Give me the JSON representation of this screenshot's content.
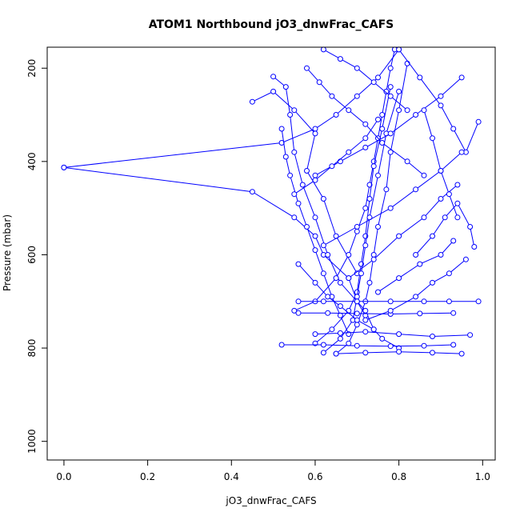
{
  "chart_data": {
    "type": "line",
    "title": "ATOM1 Northbound jO3_dnwFrac_CAFS",
    "xlabel": "jO3_dnwFrac_CAFS",
    "ylabel": "Pressure (mbar)",
    "xlim": [
      -0.04,
      1.03
    ],
    "ylim": [
      1040,
      155
    ],
    "y_reversed": true,
    "x_ticks": [
      0.0,
      0.2,
      0.4,
      0.6,
      0.8,
      1.0
    ],
    "x_tick_labels": [
      "0.0",
      "0.2",
      "0.4",
      "0.6",
      "0.8",
      "1.0"
    ],
    "y_ticks": [
      200,
      400,
      600,
      800,
      1000
    ],
    "y_tick_labels": [
      "200",
      "400",
      "600",
      "800",
      "1000"
    ],
    "grid": false,
    "legend": "none",
    "series_color": "#0000ff",
    "marker": "open-circle",
    "series": [
      {
        "x": [
          0.0,
          0.45,
          0.55,
          0.6,
          0.62,
          0.68,
          0.7,
          0.72,
          0.74,
          0.76,
          0.8
        ],
        "y": [
          413,
          465,
          520,
          560,
          600,
          650,
          700,
          720,
          760,
          780,
          800
        ]
      },
      {
        "x": [
          0.0,
          0.52,
          0.6,
          0.65,
          0.7,
          0.75,
          0.8
        ],
        "y": [
          413,
          360,
          330,
          300,
          260,
          220,
          160
        ]
      },
      {
        "x": [
          0.45,
          0.5,
          0.55,
          0.6,
          0.58,
          0.62,
          0.65,
          0.7
        ],
        "y": [
          272,
          250,
          290,
          340,
          420,
          480,
          560,
          640
        ]
      },
      {
        "x": [
          0.5,
          0.53,
          0.54,
          0.55,
          0.57,
          0.6,
          0.63,
          0.66,
          0.7,
          0.72
        ],
        "y": [
          218,
          240,
          300,
          380,
          450,
          520,
          600,
          660,
          700,
          730
        ]
      },
      {
        "x": [
          0.52,
          0.53,
          0.54,
          0.56,
          0.58,
          0.6,
          0.62,
          0.64,
          0.66,
          0.68
        ],
        "y": [
          330,
          390,
          430,
          490,
          540,
          590,
          640,
          690,
          730,
          770
        ]
      },
      {
        "x": [
          0.55,
          0.6,
          0.65,
          0.68,
          0.7,
          0.72,
          0.73,
          0.74,
          0.75,
          0.76,
          0.77,
          0.78,
          0.79
        ],
        "y": [
          720,
          700,
          650,
          600,
          550,
          500,
          450,
          400,
          350,
          300,
          250,
          200,
          160
        ]
      },
      {
        "x": [
          0.6,
          0.64,
          0.68,
          0.7,
          0.71,
          0.72,
          0.73,
          0.74,
          0.76,
          0.78
        ],
        "y": [
          790,
          760,
          720,
          680,
          620,
          560,
          480,
          410,
          330,
          240
        ]
      },
      {
        "x": [
          0.62,
          0.66,
          0.69,
          0.7,
          0.71,
          0.72,
          0.73,
          0.75,
          0.77,
          0.8
        ],
        "y": [
          810,
          780,
          740,
          690,
          640,
          580,
          520,
          430,
          340,
          250
        ]
      },
      {
        "x": [
          0.65,
          0.68,
          0.7,
          0.72,
          0.73,
          0.74,
          0.75,
          0.77,
          0.78,
          0.8,
          0.82
        ],
        "y": [
          812,
          790,
          750,
          700,
          660,
          600,
          540,
          460,
          380,
          290,
          190
        ]
      },
      {
        "x": [
          0.52,
          0.62,
          0.7,
          0.78,
          0.86,
          0.93
        ],
        "y": [
          793,
          793,
          795,
          796,
          795,
          793
        ]
      },
      {
        "x": [
          0.65,
          0.72,
          0.8,
          0.88,
          0.95
        ],
        "y": [
          812,
          810,
          808,
          810,
          812
        ]
      },
      {
        "x": [
          0.56,
          0.62,
          0.7,
          0.78,
          0.86,
          0.92,
          0.99
        ],
        "y": [
          700,
          700,
          700,
          700,
          700,
          700,
          700
        ]
      },
      {
        "x": [
          0.56,
          0.63,
          0.7,
          0.78,
          0.85,
          0.93
        ],
        "y": [
          725,
          725,
          726,
          727,
          726,
          725
        ]
      },
      {
        "x": [
          0.6,
          0.66,
          0.72,
          0.8,
          0.88,
          0.97
        ],
        "y": [
          770,
          768,
          765,
          770,
          775,
          772
        ]
      },
      {
        "x": [
          0.8,
          0.85,
          0.9,
          0.93,
          0.96,
          0.99
        ],
        "y": [
          160,
          220,
          280,
          330,
          380,
          315
        ]
      },
      {
        "x": [
          0.84,
          0.88,
          0.91,
          0.94,
          0.97,
          0.98
        ],
        "y": [
          600,
          560,
          520,
          490,
          540,
          583
        ]
      },
      {
        "x": [
          0.62,
          0.7,
          0.78,
          0.84,
          0.9,
          0.95
        ],
        "y": [
          580,
          540,
          500,
          460,
          420,
          380
        ]
      },
      {
        "x": [
          0.68,
          0.74,
          0.8,
          0.86,
          0.9,
          0.94
        ],
        "y": [
          650,
          610,
          560,
          520,
          480,
          450
        ]
      },
      {
        "x": [
          0.6,
          0.66,
          0.72,
          0.78,
          0.84,
          0.9,
          0.95
        ],
        "y": [
          430,
          400,
          370,
          340,
          300,
          260,
          220
        ]
      },
      {
        "x": [
          0.55,
          0.6,
          0.64,
          0.68,
          0.72,
          0.75
        ],
        "y": [
          470,
          440,
          410,
          380,
          350,
          310
        ]
      },
      {
        "x": [
          0.58,
          0.61,
          0.64,
          0.68,
          0.72,
          0.76,
          0.82,
          0.86
        ],
        "y": [
          200,
          230,
          260,
          290,
          320,
          360,
          400,
          430
        ]
      },
      {
        "x": [
          0.56,
          0.6,
          0.63,
          0.66,
          0.7,
          0.74
        ],
        "y": [
          620,
          660,
          690,
          710,
          740,
          760
        ]
      },
      {
        "x": [
          0.75,
          0.8,
          0.85,
          0.9,
          0.93
        ],
        "y": [
          680,
          650,
          620,
          600,
          570
        ]
      },
      {
        "x": [
          0.72,
          0.78,
          0.84,
          0.88,
          0.92,
          0.96
        ],
        "y": [
          740,
          720,
          690,
          660,
          640,
          610
        ]
      },
      {
        "x": [
          0.86,
          0.88,
          0.9,
          0.92,
          0.94
        ],
        "y": [
          290,
          350,
          420,
          470,
          520
        ]
      },
      {
        "x": [
          0.62,
          0.66,
          0.7,
          0.74,
          0.78,
          0.82
        ],
        "y": [
          160,
          180,
          200,
          230,
          260,
          290
        ]
      }
    ]
  }
}
